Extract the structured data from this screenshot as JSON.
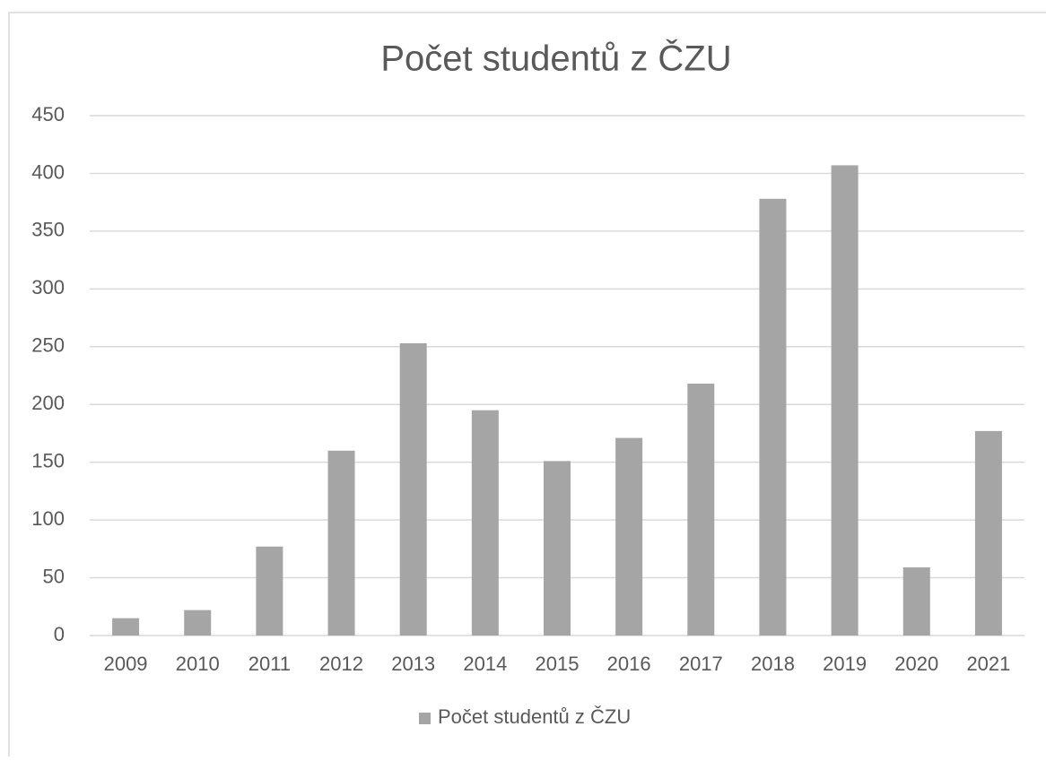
{
  "chart_data": {
    "type": "bar",
    "title": "Počet studentů z ČZU",
    "categories": [
      "2009",
      "2010",
      "2011",
      "2012",
      "2013",
      "2014",
      "2015",
      "2016",
      "2017",
      "2018",
      "2019",
      "2020",
      "2021"
    ],
    "series": [
      {
        "name": "Počet studentů z ČZU",
        "color": "#a5a5a5",
        "values": [
          15,
          22,
          77,
          160,
          253,
          195,
          151,
          171,
          218,
          378,
          407,
          59,
          177
        ]
      }
    ],
    "ylim": [
      0,
      450
    ],
    "yticks": [
      0,
      50,
      100,
      150,
      200,
      250,
      300,
      350,
      400,
      450
    ],
    "grid": true,
    "legend": "bottom"
  }
}
